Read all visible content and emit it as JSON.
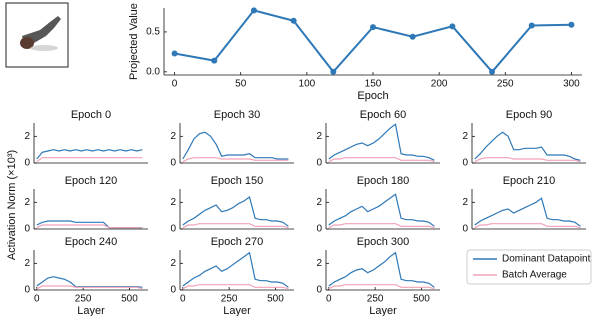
{
  "figure_ylabel": "Activation Norm (×10³)",
  "chart_data": [
    {
      "type": "line",
      "markers": true,
      "color": "#2e78b7",
      "x": [
        0,
        30,
        60,
        90,
        120,
        150,
        180,
        210,
        240,
        270,
        300
      ],
      "values": [
        0.23,
        0.14,
        0.77,
        0.64,
        0.0,
        0.56,
        0.44,
        0.57,
        0.0,
        0.58,
        0.59
      ],
      "xlim": [
        -8,
        308
      ],
      "ylim": [
        -0.04,
        0.8
      ],
      "xticks": [
        0,
        50,
        100,
        150,
        200,
        250,
        300
      ],
      "yticks": [
        {
          "value": 0,
          "label": "0.0"
        },
        {
          "value": 0.5,
          "label": "0.5"
        }
      ],
      "xlabel": "Epoch",
      "ylabel": "Projected Value"
    },
    {
      "type": "line",
      "title": "Epoch 0",
      "x": [
        0,
        30,
        60,
        90,
        120,
        150,
        180,
        210,
        240,
        270,
        300,
        330,
        360,
        390,
        420,
        450,
        480,
        510,
        540,
        570
      ],
      "xlim": [
        -15,
        600
      ],
      "ylim": [
        0,
        3
      ],
      "yticks": [
        0,
        2
      ],
      "series": [
        {
          "name": "Dominant Datapoint",
          "color": "#2e78b7",
          "values": [
            0.3,
            0.8,
            0.9,
            1.0,
            0.9,
            1.0,
            0.9,
            1.0,
            0.9,
            1.0,
            0.9,
            1.0,
            0.9,
            1.0,
            0.9,
            1.0,
            0.9,
            1.0,
            0.9,
            1.0
          ]
        },
        {
          "name": "Batch Average",
          "color": "#f2a3b6",
          "values": [
            0.1,
            0.4,
            0.4,
            0.4,
            0.4,
            0.4,
            0.4,
            0.4,
            0.4,
            0.4,
            0.4,
            0.4,
            0.4,
            0.4,
            0.4,
            0.4,
            0.4,
            0.4,
            0.4,
            0.4
          ]
        }
      ]
    },
    {
      "type": "line",
      "title": "Epoch 30",
      "x": [
        0,
        30,
        60,
        90,
        120,
        150,
        180,
        210,
        240,
        270,
        300,
        330,
        360,
        390,
        420,
        450,
        480,
        510,
        540,
        570
      ],
      "xlim": [
        -15,
        600
      ],
      "ylim": [
        0,
        3
      ],
      "yticks": [
        0,
        2
      ],
      "series": [
        {
          "name": "Dominant Datapoint",
          "color": "#2e78b7",
          "values": [
            0.3,
            1.0,
            1.8,
            2.2,
            2.3,
            2.0,
            1.4,
            0.5,
            0.6,
            0.6,
            0.6,
            0.6,
            0.7,
            0.4,
            0.4,
            0.4,
            0.4,
            0.3,
            0.3,
            0.3
          ]
        },
        {
          "name": "Batch Average",
          "color": "#f2a3b6",
          "values": [
            0.1,
            0.3,
            0.4,
            0.4,
            0.4,
            0.4,
            0.4,
            0.3,
            0.3,
            0.3,
            0.3,
            0.3,
            0.3,
            0.2,
            0.2,
            0.2,
            0.2,
            0.2,
            0.2,
            0.2
          ]
        }
      ]
    },
    {
      "type": "line",
      "title": "Epoch 60",
      "x": [
        0,
        30,
        60,
        90,
        120,
        150,
        180,
        210,
        240,
        270,
        300,
        330,
        360,
        390,
        420,
        450,
        480,
        510,
        540,
        570
      ],
      "xlim": [
        -15,
        600
      ],
      "ylim": [
        0,
        3
      ],
      "yticks": [
        0,
        2
      ],
      "series": [
        {
          "name": "Dominant Datapoint",
          "color": "#2e78b7",
          "values": [
            0.3,
            0.6,
            0.8,
            1.0,
            1.2,
            1.4,
            1.5,
            1.3,
            1.5,
            1.8,
            2.2,
            2.6,
            2.9,
            0.7,
            0.6,
            0.6,
            0.5,
            0.5,
            0.4,
            0.2
          ]
        },
        {
          "name": "Batch Average",
          "color": "#f2a3b6",
          "values": [
            0.1,
            0.3,
            0.3,
            0.4,
            0.4,
            0.4,
            0.4,
            0.4,
            0.4,
            0.4,
            0.4,
            0.4,
            0.4,
            0.2,
            0.2,
            0.2,
            0.2,
            0.2,
            0.2,
            0.1
          ]
        }
      ]
    },
    {
      "type": "line",
      "title": "Epoch 90",
      "x": [
        0,
        30,
        60,
        90,
        120,
        150,
        180,
        210,
        240,
        270,
        300,
        330,
        360,
        390,
        420,
        450,
        480,
        510,
        540,
        570
      ],
      "xlim": [
        -15,
        600
      ],
      "ylim": [
        0,
        3
      ],
      "yticks": [
        0,
        2
      ],
      "series": [
        {
          "name": "Dominant Datapoint",
          "color": "#2e78b7",
          "values": [
            0.3,
            0.7,
            1.2,
            1.6,
            2.0,
            2.3,
            2.0,
            1.0,
            1.0,
            1.1,
            1.1,
            1.1,
            1.2,
            0.6,
            0.6,
            0.6,
            0.6,
            0.5,
            0.3,
            0.2
          ]
        },
        {
          "name": "Batch Average",
          "color": "#f2a3b6",
          "values": [
            0.1,
            0.3,
            0.4,
            0.4,
            0.4,
            0.4,
            0.4,
            0.3,
            0.3,
            0.3,
            0.3,
            0.3,
            0.3,
            0.2,
            0.2,
            0.2,
            0.2,
            0.2,
            0.2,
            0.1
          ]
        }
      ]
    },
    {
      "type": "line",
      "title": "Epoch 120",
      "x": [
        0,
        30,
        60,
        90,
        120,
        150,
        180,
        210,
        240,
        270,
        300,
        330,
        360,
        390,
        420,
        450,
        480,
        510,
        540,
        570
      ],
      "xlim": [
        -15,
        600
      ],
      "ylim": [
        0,
        3
      ],
      "yticks": [
        0,
        2
      ],
      "series": [
        {
          "name": "Dominant Datapoint",
          "color": "#2e78b7",
          "values": [
            0.3,
            0.5,
            0.6,
            0.6,
            0.6,
            0.6,
            0.6,
            0.5,
            0.5,
            0.5,
            0.5,
            0.5,
            0.5,
            0.1,
            0.1,
            0.1,
            0.1,
            0.1,
            0.1,
            0.1
          ]
        },
        {
          "name": "Batch Average",
          "color": "#f2a3b6",
          "values": [
            0.1,
            0.3,
            0.3,
            0.3,
            0.3,
            0.3,
            0.3,
            0.3,
            0.3,
            0.3,
            0.3,
            0.3,
            0.3,
            0.1,
            0.1,
            0.1,
            0.1,
            0.1,
            0.1,
            0.1
          ]
        }
      ]
    },
    {
      "type": "line",
      "title": "Epoch 150",
      "x": [
        0,
        30,
        60,
        90,
        120,
        150,
        180,
        210,
        240,
        270,
        300,
        330,
        360,
        390,
        420,
        450,
        480,
        510,
        540,
        570
      ],
      "xlim": [
        -15,
        600
      ],
      "ylim": [
        0,
        3
      ],
      "yticks": [
        0,
        2
      ],
      "series": [
        {
          "name": "Dominant Datapoint",
          "color": "#2e78b7",
          "values": [
            0.3,
            0.6,
            0.8,
            1.1,
            1.4,
            1.6,
            1.8,
            1.3,
            1.4,
            1.6,
            1.9,
            2.1,
            2.4,
            0.8,
            0.7,
            0.7,
            0.6,
            0.6,
            0.5,
            0.2
          ]
        },
        {
          "name": "Batch Average",
          "color": "#f2a3b6",
          "values": [
            0.1,
            0.3,
            0.3,
            0.4,
            0.4,
            0.4,
            0.4,
            0.4,
            0.4,
            0.4,
            0.4,
            0.4,
            0.4,
            0.2,
            0.2,
            0.2,
            0.2,
            0.2,
            0.2,
            0.1
          ]
        }
      ]
    },
    {
      "type": "line",
      "title": "Epoch 180",
      "x": [
        0,
        30,
        60,
        90,
        120,
        150,
        180,
        210,
        240,
        270,
        300,
        330,
        360,
        390,
        420,
        450,
        480,
        510,
        540,
        570
      ],
      "xlim": [
        -15,
        600
      ],
      "ylim": [
        0,
        3
      ],
      "yticks": [
        0,
        2
      ],
      "series": [
        {
          "name": "Dominant Datapoint",
          "color": "#2e78b7",
          "values": [
            0.3,
            0.6,
            0.8,
            1.0,
            1.3,
            1.5,
            1.7,
            1.3,
            1.5,
            1.7,
            2.0,
            2.3,
            2.6,
            0.8,
            0.7,
            0.7,
            0.6,
            0.6,
            0.5,
            0.2
          ]
        },
        {
          "name": "Batch Average",
          "color": "#f2a3b6",
          "values": [
            0.1,
            0.3,
            0.3,
            0.4,
            0.4,
            0.4,
            0.4,
            0.4,
            0.4,
            0.4,
            0.4,
            0.4,
            0.4,
            0.2,
            0.2,
            0.2,
            0.2,
            0.2,
            0.2,
            0.1
          ]
        }
      ]
    },
    {
      "type": "line",
      "title": "Epoch 210",
      "x": [
        0,
        30,
        60,
        90,
        120,
        150,
        180,
        210,
        240,
        270,
        300,
        330,
        360,
        390,
        420,
        450,
        480,
        510,
        540,
        570
      ],
      "xlim": [
        -15,
        600
      ],
      "ylim": [
        0,
        3
      ],
      "yticks": [
        0,
        2
      ],
      "series": [
        {
          "name": "Dominant Datapoint",
          "color": "#2e78b7",
          "values": [
            0.3,
            0.6,
            0.8,
            1.0,
            1.2,
            1.4,
            1.5,
            1.2,
            1.4,
            1.6,
            1.8,
            2.0,
            2.3,
            0.8,
            0.7,
            0.7,
            0.6,
            0.6,
            0.5,
            0.2
          ]
        },
        {
          "name": "Batch Average",
          "color": "#f2a3b6",
          "values": [
            0.1,
            0.3,
            0.3,
            0.4,
            0.4,
            0.4,
            0.4,
            0.4,
            0.4,
            0.4,
            0.4,
            0.4,
            0.4,
            0.2,
            0.2,
            0.2,
            0.2,
            0.2,
            0.2,
            0.1
          ]
        }
      ]
    },
    {
      "type": "line",
      "title": "Epoch 240",
      "x": [
        0,
        30,
        60,
        90,
        120,
        150,
        180,
        210,
        240,
        270,
        300,
        330,
        360,
        390,
        420,
        450,
        480,
        510,
        540,
        570
      ],
      "xlim": [
        -15,
        600
      ],
      "ylim": [
        0,
        3
      ],
      "yticks": [
        0,
        2
      ],
      "xticks": [
        0,
        250,
        500
      ],
      "xlabel": "Layer",
      "series": [
        {
          "name": "Dominant Datapoint",
          "color": "#2e78b7",
          "values": [
            0.3,
            0.6,
            0.9,
            1.0,
            0.9,
            0.8,
            0.6,
            0.25,
            0.25,
            0.25,
            0.25,
            0.25,
            0.25,
            0.25,
            0.25,
            0.25,
            0.25,
            0.25,
            0.25,
            0.2
          ]
        },
        {
          "name": "Batch Average",
          "color": "#f2a3b6",
          "values": [
            0.1,
            0.3,
            0.3,
            0.3,
            0.3,
            0.3,
            0.3,
            0.2,
            0.2,
            0.2,
            0.2,
            0.2,
            0.2,
            0.2,
            0.2,
            0.2,
            0.2,
            0.2,
            0.2,
            0.1
          ]
        }
      ]
    },
    {
      "type": "line",
      "title": "Epoch 270",
      "x": [
        0,
        30,
        60,
        90,
        120,
        150,
        180,
        210,
        240,
        270,
        300,
        330,
        360,
        390,
        420,
        450,
        480,
        510,
        540,
        570
      ],
      "xlim": [
        -15,
        600
      ],
      "ylim": [
        0,
        3
      ],
      "yticks": [
        0,
        2
      ],
      "xticks": [
        0,
        250,
        500
      ],
      "xlabel": "Layer",
      "series": [
        {
          "name": "Dominant Datapoint",
          "color": "#2e78b7",
          "values": [
            0.3,
            0.6,
            0.9,
            1.1,
            1.4,
            1.6,
            1.8,
            1.4,
            1.6,
            1.9,
            2.2,
            2.5,
            2.8,
            0.8,
            0.7,
            0.7,
            0.6,
            0.6,
            0.5,
            0.2
          ]
        },
        {
          "name": "Batch Average",
          "color": "#f2a3b6",
          "values": [
            0.1,
            0.3,
            0.3,
            0.4,
            0.4,
            0.4,
            0.4,
            0.4,
            0.4,
            0.4,
            0.4,
            0.4,
            0.4,
            0.2,
            0.2,
            0.2,
            0.2,
            0.2,
            0.2,
            0.1
          ]
        }
      ]
    },
    {
      "type": "line",
      "title": "Epoch 300",
      "x": [
        0,
        30,
        60,
        90,
        120,
        150,
        180,
        210,
        240,
        270,
        300,
        330,
        360,
        390,
        420,
        450,
        480,
        510,
        540,
        570
      ],
      "xlim": [
        -15,
        600
      ],
      "ylim": [
        0,
        3
      ],
      "yticks": [
        0,
        2
      ],
      "xticks": [
        0,
        250,
        500
      ],
      "xlabel": "Layer",
      "series": [
        {
          "name": "Dominant Datapoint",
          "color": "#2e78b7",
          "values": [
            0.3,
            0.6,
            0.8,
            1.0,
            1.3,
            1.5,
            1.6,
            1.3,
            1.5,
            1.8,
            2.1,
            2.5,
            2.8,
            0.8,
            0.7,
            0.7,
            0.6,
            0.6,
            0.5,
            0.2
          ]
        },
        {
          "name": "Batch Average",
          "color": "#f2a3b6",
          "values": [
            0.1,
            0.3,
            0.3,
            0.4,
            0.4,
            0.4,
            0.4,
            0.4,
            0.4,
            0.4,
            0.4,
            0.4,
            0.4,
            0.2,
            0.2,
            0.2,
            0.2,
            0.2,
            0.2,
            0.1
          ]
        }
      ]
    }
  ]
}
